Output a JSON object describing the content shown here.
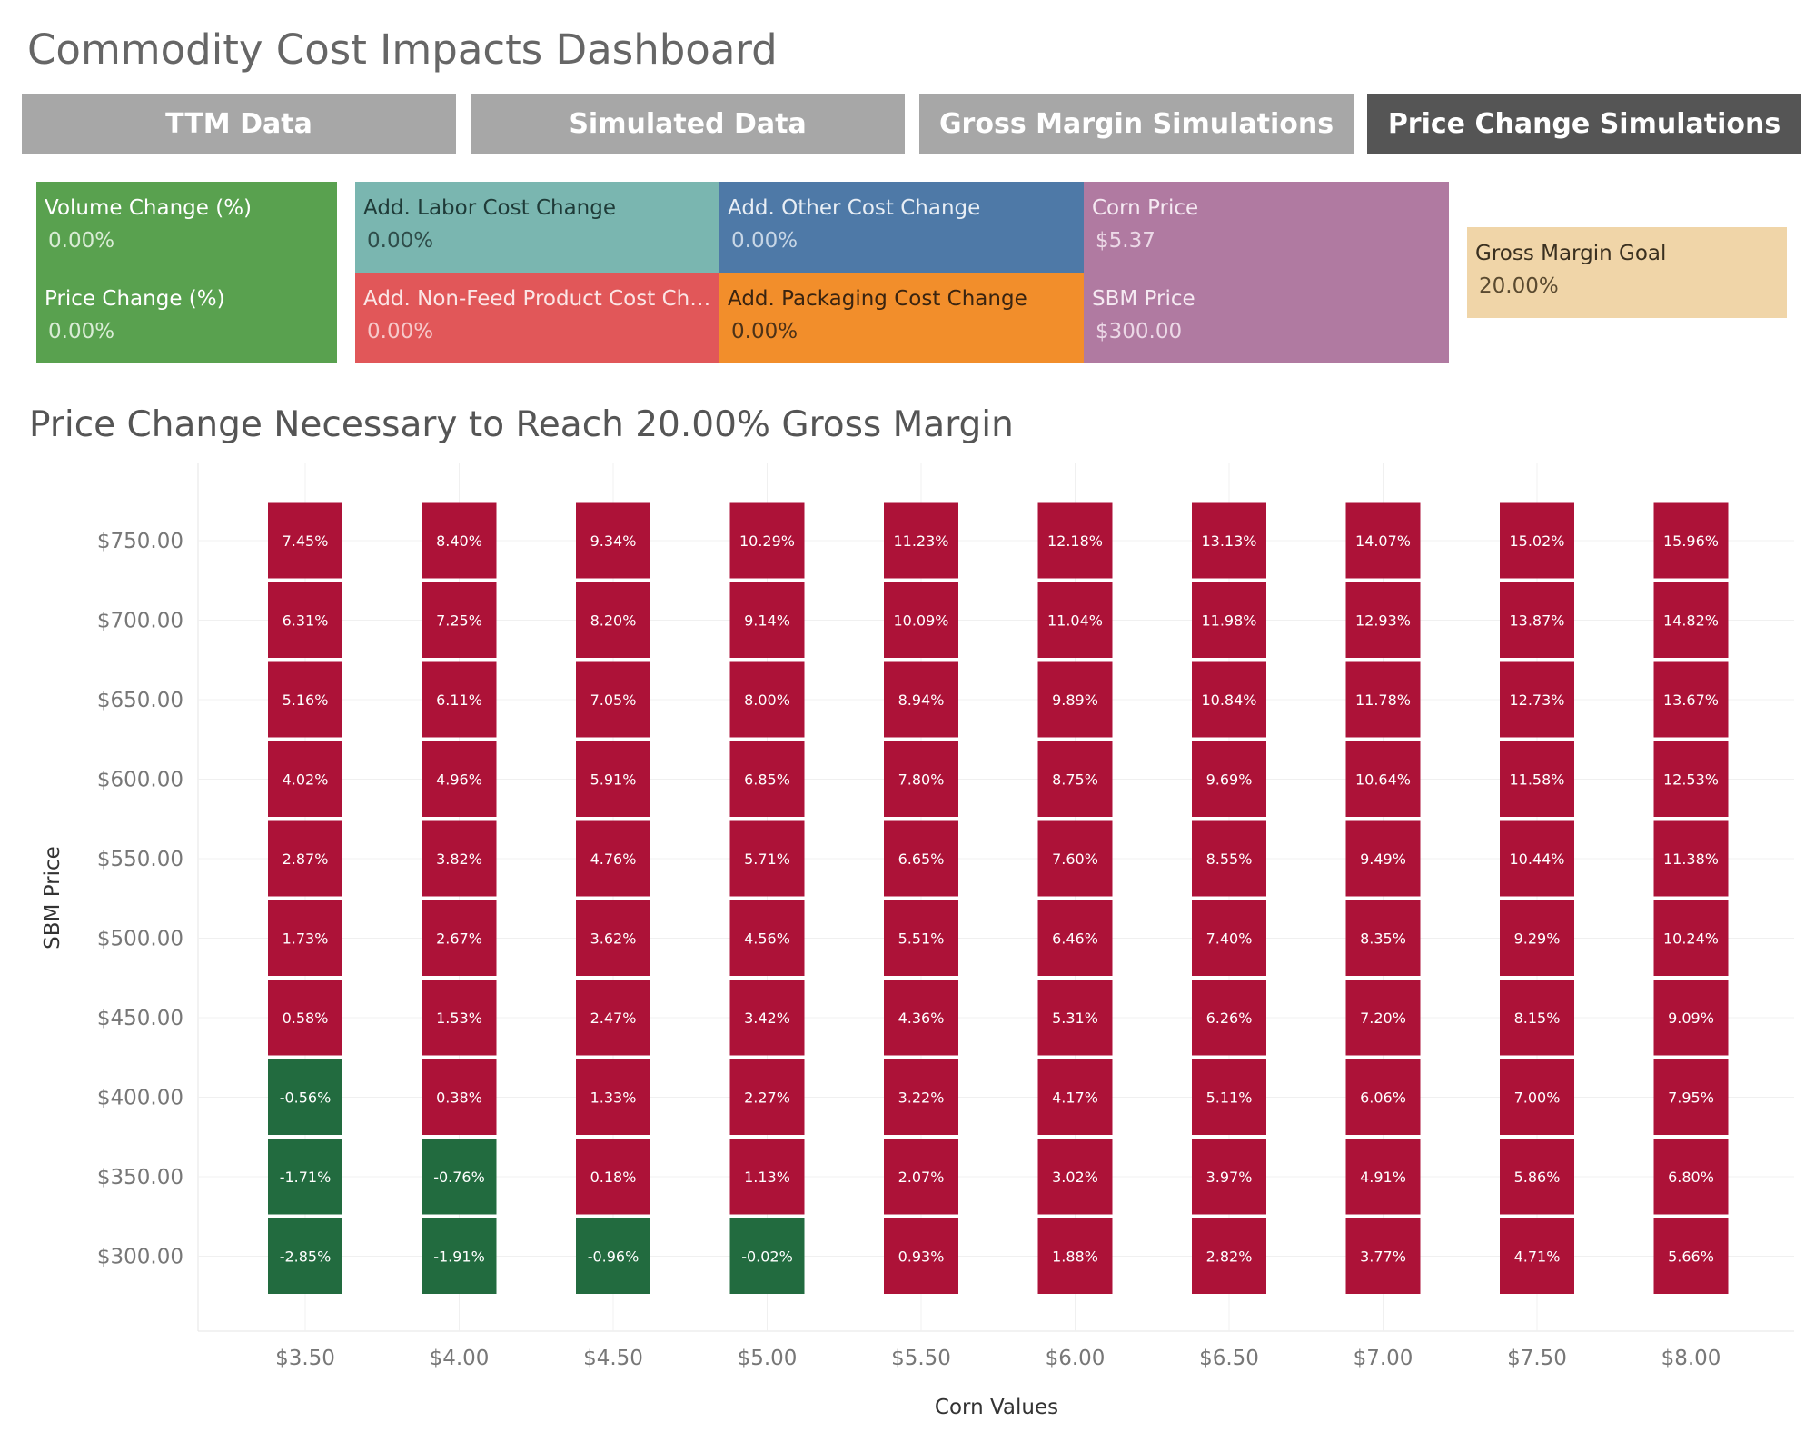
{
  "dashboard": {
    "title": "Commodity Cost Impacts Dashboard"
  },
  "nav": {
    "tabs": [
      {
        "label": "TTM Data",
        "active": false
      },
      {
        "label": "Simulated Data",
        "active": false
      },
      {
        "label": "Gross Margin Simulations",
        "active": false
      },
      {
        "label": "Price Change Simulations",
        "active": true
      }
    ]
  },
  "params": {
    "volume_change": {
      "label": "Volume Change (%)",
      "value": "0.00%"
    },
    "price_change": {
      "label": "Price Change (%)",
      "value": "0.00%"
    },
    "labor_cost": {
      "label": "Add. Labor Cost Change",
      "value": "0.00%"
    },
    "other_cost": {
      "label": "Add. Other Cost Change",
      "value": "0.00%"
    },
    "corn_price": {
      "label": "Corn Price",
      "value": "$5.37"
    },
    "nonfeed_cost": {
      "label": "Add. Non-Feed Product Cost Change",
      "value": "0.00%"
    },
    "packaging_cost": {
      "label": "Add. Packaging Cost Change",
      "value": "0.00%"
    },
    "sbm_price": {
      "label": "SBM Price",
      "value": "$300.00"
    },
    "gross_margin_goal": {
      "label": "Gross Margin Goal",
      "value": "20.00%"
    }
  },
  "colors": {
    "green_card": "#59a14f",
    "teal_card": "#7ab6b0",
    "blue_card": "#4e79a7",
    "purple_card": "#b07aa1",
    "red_card": "#e15759",
    "orange_card": "#f28e2b",
    "tan_card": "#f0d5a8",
    "positive_cell": "#ad1238",
    "negative_cell": "#226b3f"
  },
  "chart_data": {
    "type": "heatmap",
    "title": "Price Change Necessary to Reach 20.00% Gross Margin",
    "xlabel": "Corn Values",
    "ylabel": "SBM Price",
    "x_categories": [
      "$3.50",
      "$4.00",
      "$4.50",
      "$5.00",
      "$5.50",
      "$6.00",
      "$6.50",
      "$7.00",
      "$7.50",
      "$8.00"
    ],
    "y_categories": [
      "$750.00",
      "$700.00",
      "$650.00",
      "$600.00",
      "$550.00",
      "$500.00",
      "$450.00",
      "$400.00",
      "$350.00",
      "$300.00"
    ],
    "values": [
      [
        "7.45%",
        "8.40%",
        "9.34%",
        "10.29%",
        "11.23%",
        "12.18%",
        "13.13%",
        "14.07%",
        "15.02%",
        "15.96%"
      ],
      [
        "6.31%",
        "7.25%",
        "8.20%",
        "9.14%",
        "10.09%",
        "11.04%",
        "11.98%",
        "12.93%",
        "13.87%",
        "14.82%"
      ],
      [
        "5.16%",
        "6.11%",
        "7.05%",
        "8.00%",
        "8.94%",
        "9.89%",
        "10.84%",
        "11.78%",
        "12.73%",
        "13.67%"
      ],
      [
        "4.02%",
        "4.96%",
        "5.91%",
        "6.85%",
        "7.80%",
        "8.75%",
        "9.69%",
        "10.64%",
        "11.58%",
        "12.53%"
      ],
      [
        "2.87%",
        "3.82%",
        "4.76%",
        "5.71%",
        "6.65%",
        "7.60%",
        "8.55%",
        "9.49%",
        "10.44%",
        "11.38%"
      ],
      [
        "1.73%",
        "2.67%",
        "3.62%",
        "4.56%",
        "5.51%",
        "6.46%",
        "7.40%",
        "8.35%",
        "9.29%",
        "10.24%"
      ],
      [
        "0.58%",
        "1.53%",
        "2.47%",
        "3.42%",
        "4.36%",
        "5.31%",
        "6.26%",
        "7.20%",
        "8.15%",
        "9.09%"
      ],
      [
        "-0.56%",
        "0.38%",
        "1.33%",
        "2.27%",
        "3.22%",
        "4.17%",
        "5.11%",
        "6.06%",
        "7.00%",
        "7.95%"
      ],
      [
        "-1.71%",
        "-0.76%",
        "0.18%",
        "1.13%",
        "2.07%",
        "3.02%",
        "3.97%",
        "4.91%",
        "5.86%",
        "6.80%"
      ],
      [
        "-2.85%",
        "-1.91%",
        "-0.96%",
        "-0.02%",
        "0.93%",
        "1.88%",
        "2.82%",
        "3.77%",
        "4.71%",
        "5.66%"
      ]
    ]
  }
}
